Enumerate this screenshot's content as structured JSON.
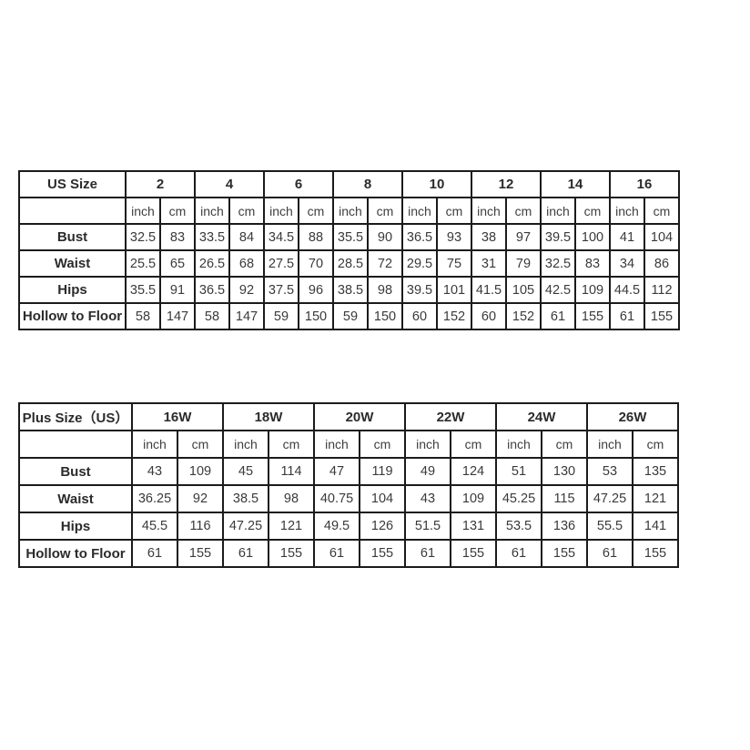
{
  "colors": {
    "background": "#ffffff",
    "table_border": "#1b1b1b",
    "header_text": "#2b2b2b",
    "value_text": "#3a3a3a"
  },
  "tables": [
    {
      "name": "us-size-table",
      "corner_label": "US Size",
      "sizes": [
        "2",
        "4",
        "6",
        "8",
        "10",
        "12",
        "14",
        "16"
      ],
      "units": [
        "inch",
        "cm"
      ],
      "rows": [
        {
          "label": "Bust",
          "values": [
            [
              "32.5",
              "83"
            ],
            [
              "33.5",
              "84"
            ],
            [
              "34.5",
              "88"
            ],
            [
              "35.5",
              "90"
            ],
            [
              "36.5",
              "93"
            ],
            [
              "38",
              "97"
            ],
            [
              "39.5",
              "100"
            ],
            [
              "41",
              "104"
            ]
          ]
        },
        {
          "label": "Waist",
          "values": [
            [
              "25.5",
              "65"
            ],
            [
              "26.5",
              "68"
            ],
            [
              "27.5",
              "70"
            ],
            [
              "28.5",
              "72"
            ],
            [
              "29.5",
              "75"
            ],
            [
              "31",
              "79"
            ],
            [
              "32.5",
              "83"
            ],
            [
              "34",
              "86"
            ]
          ]
        },
        {
          "label": "Hips",
          "values": [
            [
              "35.5",
              "91"
            ],
            [
              "36.5",
              "92"
            ],
            [
              "37.5",
              "96"
            ],
            [
              "38.5",
              "98"
            ],
            [
              "39.5",
              "101"
            ],
            [
              "41.5",
              "105"
            ],
            [
              "42.5",
              "109"
            ],
            [
              "44.5",
              "112"
            ]
          ]
        },
        {
          "label": "Hollow to Floor",
          "values": [
            [
              "58",
              "147"
            ],
            [
              "58",
              "147"
            ],
            [
              "59",
              "150"
            ],
            [
              "59",
              "150"
            ],
            [
              "60",
              "152"
            ],
            [
              "60",
              "152"
            ],
            [
              "61",
              "155"
            ],
            [
              "61",
              "155"
            ]
          ]
        }
      ]
    },
    {
      "name": "plus-size-table",
      "corner_label": "Plus Size（US）",
      "sizes": [
        "16W",
        "18W",
        "20W",
        "22W",
        "24W",
        "26W"
      ],
      "units": [
        "inch",
        "cm"
      ],
      "rows": [
        {
          "label": "Bust",
          "values": [
            [
              "43",
              "109"
            ],
            [
              "45",
              "114"
            ],
            [
              "47",
              "119"
            ],
            [
              "49",
              "124"
            ],
            [
              "51",
              "130"
            ],
            [
              "53",
              "135"
            ]
          ]
        },
        {
          "label": "Waist",
          "values": [
            [
              "36.25",
              "92"
            ],
            [
              "38.5",
              "98"
            ],
            [
              "40.75",
              "104"
            ],
            [
              "43",
              "109"
            ],
            [
              "45.25",
              "115"
            ],
            [
              "47.25",
              "121"
            ]
          ]
        },
        {
          "label": "Hips",
          "values": [
            [
              "45.5",
              "116"
            ],
            [
              "47.25",
              "121"
            ],
            [
              "49.5",
              "126"
            ],
            [
              "51.5",
              "131"
            ],
            [
              "53.5",
              "136"
            ],
            [
              "55.5",
              "141"
            ]
          ]
        },
        {
          "label": "Hollow to Floor",
          "values": [
            [
              "61",
              "155"
            ],
            [
              "61",
              "155"
            ],
            [
              "61",
              "155"
            ],
            [
              "61",
              "155"
            ],
            [
              "61",
              "155"
            ],
            [
              "61",
              "155"
            ]
          ]
        }
      ]
    }
  ]
}
